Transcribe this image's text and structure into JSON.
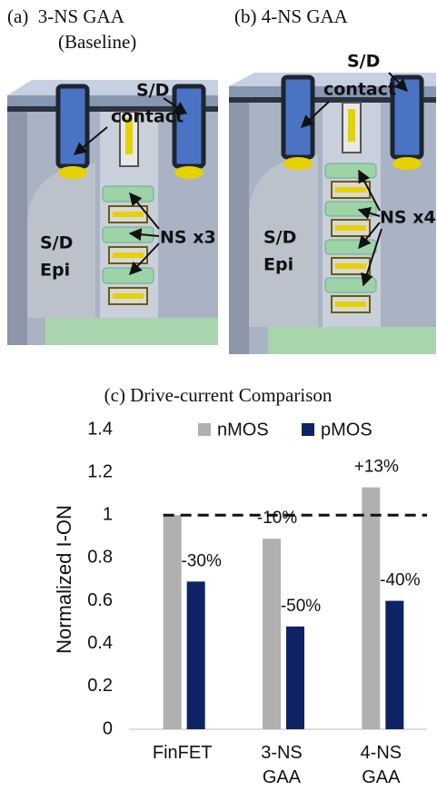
{
  "panels": [
    {
      "label": "(a)  3-NS GAA",
      "sublabel": "(Baseline)",
      "contact_label": [
        "S/D",
        "contact"
      ],
      "epi_label": [
        "S/D",
        "Epi"
      ],
      "ns_label": "NS x3"
    },
    {
      "label": "(b) 4-NS GAA",
      "contact_label": [
        "S/D",
        "contact"
      ],
      "epi_label": [
        "S/D",
        "Epi"
      ],
      "ns_label": "NS x4"
    }
  ],
  "chart_data": {
    "type": "bar",
    "title": "(c) Drive-current Comparison",
    "y_label": "Normalized I-ON",
    "categories": [
      "FinFET",
      "3-NS GAA",
      "4-NS GAA"
    ],
    "series": [
      {
        "name": "nMOS",
        "color": "#b1afaf",
        "values": [
          1,
          0.89,
          1.13
        ],
        "labels": [
          null,
          "-10%",
          "+13%"
        ]
      },
      {
        "name": "pMOS",
        "color": "#0d2366",
        "values": [
          0.69,
          0.48,
          0.6
        ],
        "labels": [
          "-30%",
          "-50%",
          "-40%"
        ]
      }
    ],
    "reference_line": 1,
    "ylim": [
      0,
      1.4
    ],
    "yticks": [
      0,
      0.2,
      0.4,
      0.6,
      0.8,
      1,
      1.2,
      1.4
    ],
    "legend": "top"
  }
}
